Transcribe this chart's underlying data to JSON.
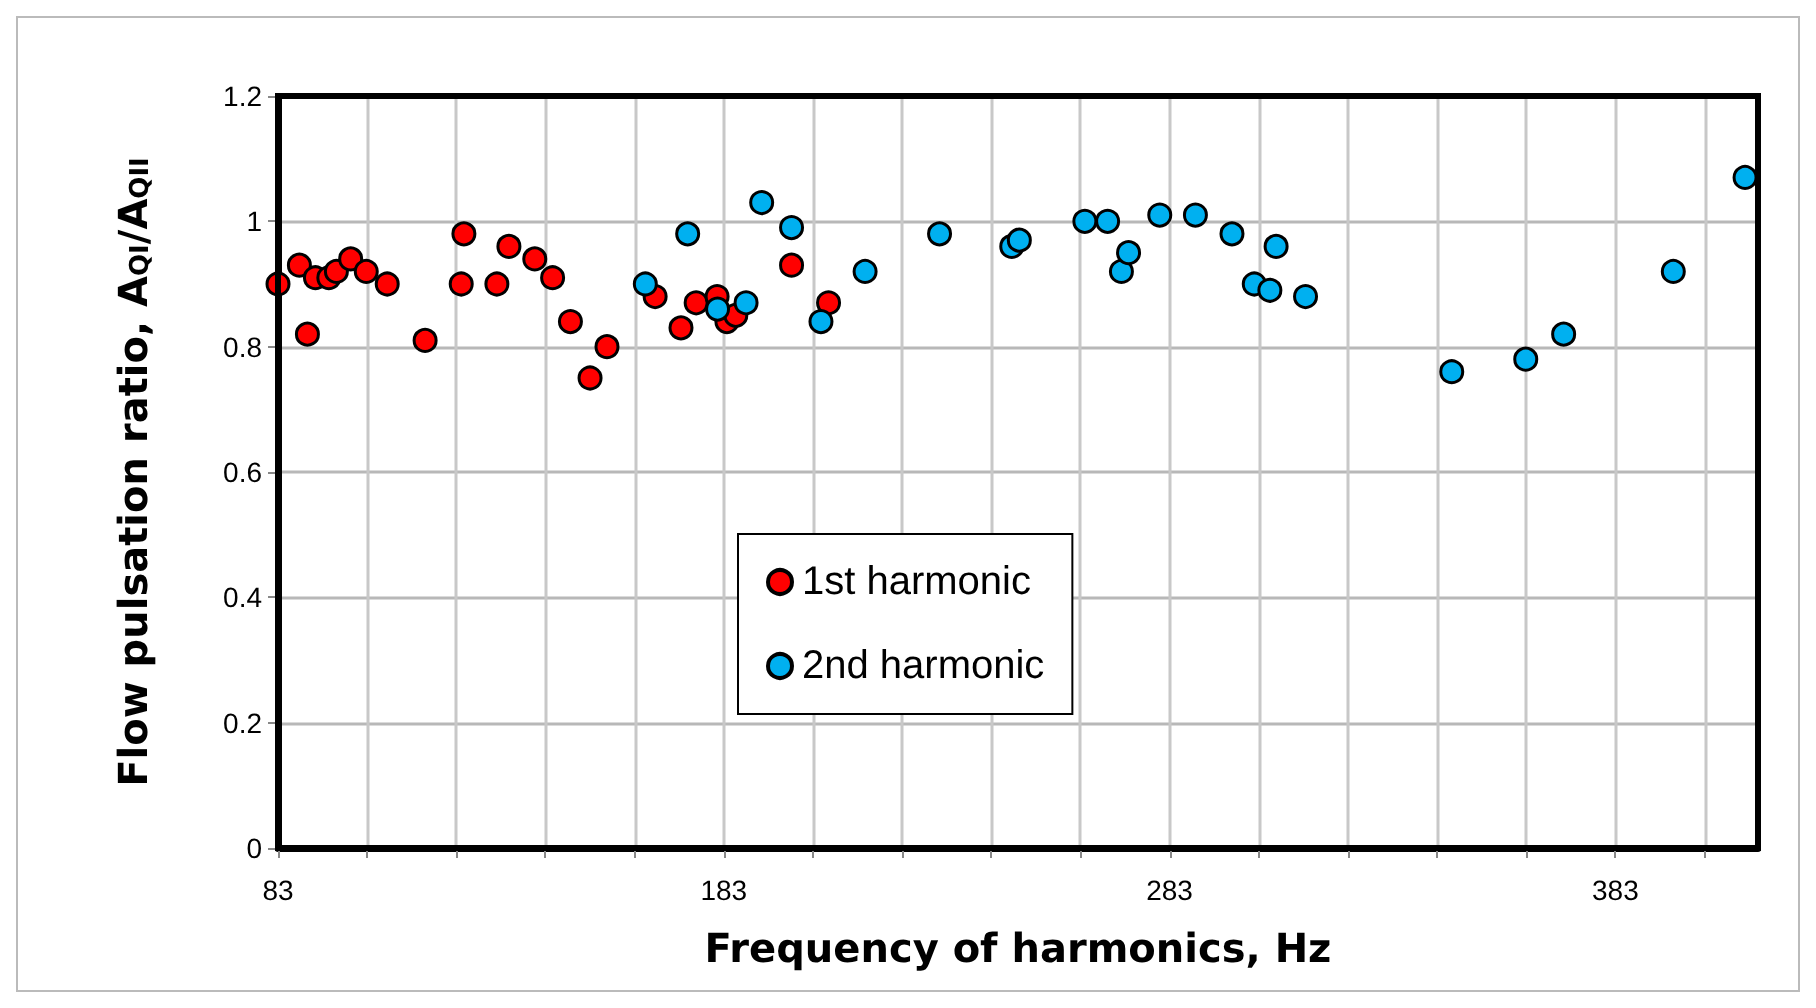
{
  "chart_data": {
    "type": "scatter",
    "xlabel": "Frequency of harmonics, Hz",
    "ylabel": "Flow pulsation ratio, A$_{QI}$/A$_{QII}$",
    "xlim": [
      83,
      415
    ],
    "xticks": [
      83,
      {
        "value": 103,
        "label": null
      },
      {
        "value": 123,
        "label": null
      },
      {
        "value": 143,
        "label": null
      },
      {
        "value": 163,
        "label": null
      },
      183,
      {
        "value": 203,
        "label": null
      },
      {
        "value": 223,
        "label": null
      },
      {
        "value": 243,
        "label": null
      },
      {
        "value": 263,
        "label": null
      },
      283,
      {
        "value": 303,
        "label": null
      },
      {
        "value": 323,
        "label": null
      },
      {
        "value": 343,
        "label": null
      },
      {
        "value": 363,
        "label": null
      },
      383,
      {
        "value": 403,
        "label": null
      }
    ],
    "ylim": [
      0,
      1.2
    ],
    "yticks": [
      0,
      0.2,
      0.4,
      0.6,
      0.8,
      1,
      1.2
    ],
    "grid": true,
    "legend": "center",
    "marker": "circle",
    "series": [
      {
        "name": "1st harmonic",
        "color": "#ff0000",
        "x": [
          83,
          87.8,
          89.6,
          91.4,
          94.4,
          96.1,
          99.3,
          102.8,
          107.5,
          116,
          124.1,
          124.7,
          132.1,
          134.8,
          140.6,
          144.6,
          148.6,
          153,
          156.8,
          167.6,
          173.4,
          176.8,
          181.5,
          183.7,
          185.7,
          198.2,
          206.5
        ],
        "values": [
          0.9,
          0.93,
          0.82,
          0.91,
          0.91,
          0.92,
          0.94,
          0.92,
          0.9,
          0.81,
          0.9,
          0.98,
          0.9,
          0.96,
          0.94,
          0.91,
          0.84,
          0.75,
          0.8,
          0.88,
          0.83,
          0.87,
          0.88,
          0.84,
          0.85,
          0.93,
          0.87
        ]
      },
      {
        "name": "2nd harmonic",
        "color": "#00b0f0",
        "x": [
          165.4,
          174.9,
          181.6,
          188,
          191.5,
          198.2,
          204.8,
          214.7,
          231.4,
          247.6,
          249.3,
          264,
          269.1,
          272.2,
          273.8,
          280.8,
          288.8,
          297,
          302,
          305.5,
          306.9,
          313.5,
          346.3,
          362.9,
          371.4,
          396,
          412.1
        ],
        "values": [
          0.9,
          0.98,
          0.86,
          0.87,
          1.03,
          0.99,
          0.84,
          0.92,
          0.98,
          0.96,
          0.97,
          1,
          1,
          0.92,
          0.95,
          1.01,
          1.01,
          0.98,
          0.9,
          0.89,
          0.96,
          0.88,
          0.76,
          0.78,
          0.82,
          0.92,
          1.07
        ]
      }
    ]
  }
}
